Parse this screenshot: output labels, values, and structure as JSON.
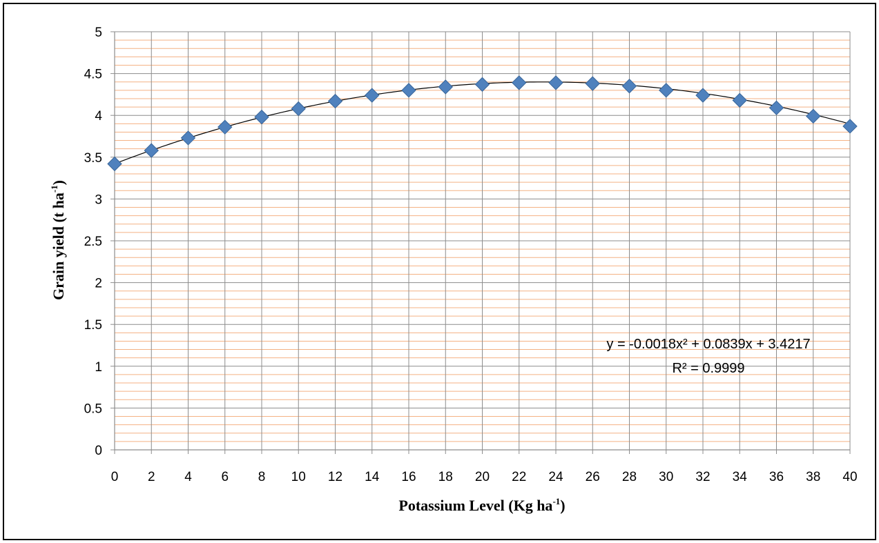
{
  "chart_data": {
    "type": "scatter",
    "xlabel": "Potassium Level (Kg ha",
    "xlabel_sup": "-1",
    "xlabel_end": ")",
    "ylabel": "Grain  yield  (t ha",
    "ylabel_sup": "-1",
    "ylabel_end": ")",
    "xlim": [
      0,
      40
    ],
    "ylim": [
      0,
      5
    ],
    "x_ticks": [
      "0",
      "2",
      "4",
      "6",
      "8",
      "10",
      "12",
      "14",
      "16",
      "18",
      "20",
      "22",
      "24",
      "26",
      "28",
      "30",
      "32",
      "34",
      "36",
      "38",
      "40"
    ],
    "y_ticks": [
      "0",
      "0.5",
      "1",
      "1.5",
      "2",
      "2.5",
      "3",
      "3.5",
      "4",
      "4.5",
      "5"
    ],
    "grid": true,
    "series": [
      {
        "x": [
          0,
          2,
          4,
          6,
          8,
          10,
          12,
          14,
          16,
          18,
          20,
          22,
          24,
          26,
          28,
          30,
          32,
          34,
          36,
          38,
          40
        ],
        "y": [
          3.42,
          3.58,
          3.73,
          3.86,
          3.98,
          4.08,
          4.17,
          4.24,
          4.3,
          4.34,
          4.37,
          4.39,
          4.39,
          4.38,
          4.35,
          4.3,
          4.24,
          4.18,
          4.09,
          3.99,
          3.87
        ],
        "marker": "diamond",
        "color": "#4f81bd"
      }
    ],
    "trendline": {
      "type": "polynomial",
      "coefficients": [
        -0.0018,
        0.0839,
        3.4217
      ],
      "equation": "y = -0.0018x² + 0.0839x + 3.4217",
      "r_squared": "R² = 0.9999",
      "color": "#000000"
    },
    "colors": {
      "major_grid": "#8c8c8c",
      "minor_grid": "#f4b183",
      "marker": "#4f81bd",
      "marker_edge": "#3a6699"
    }
  }
}
